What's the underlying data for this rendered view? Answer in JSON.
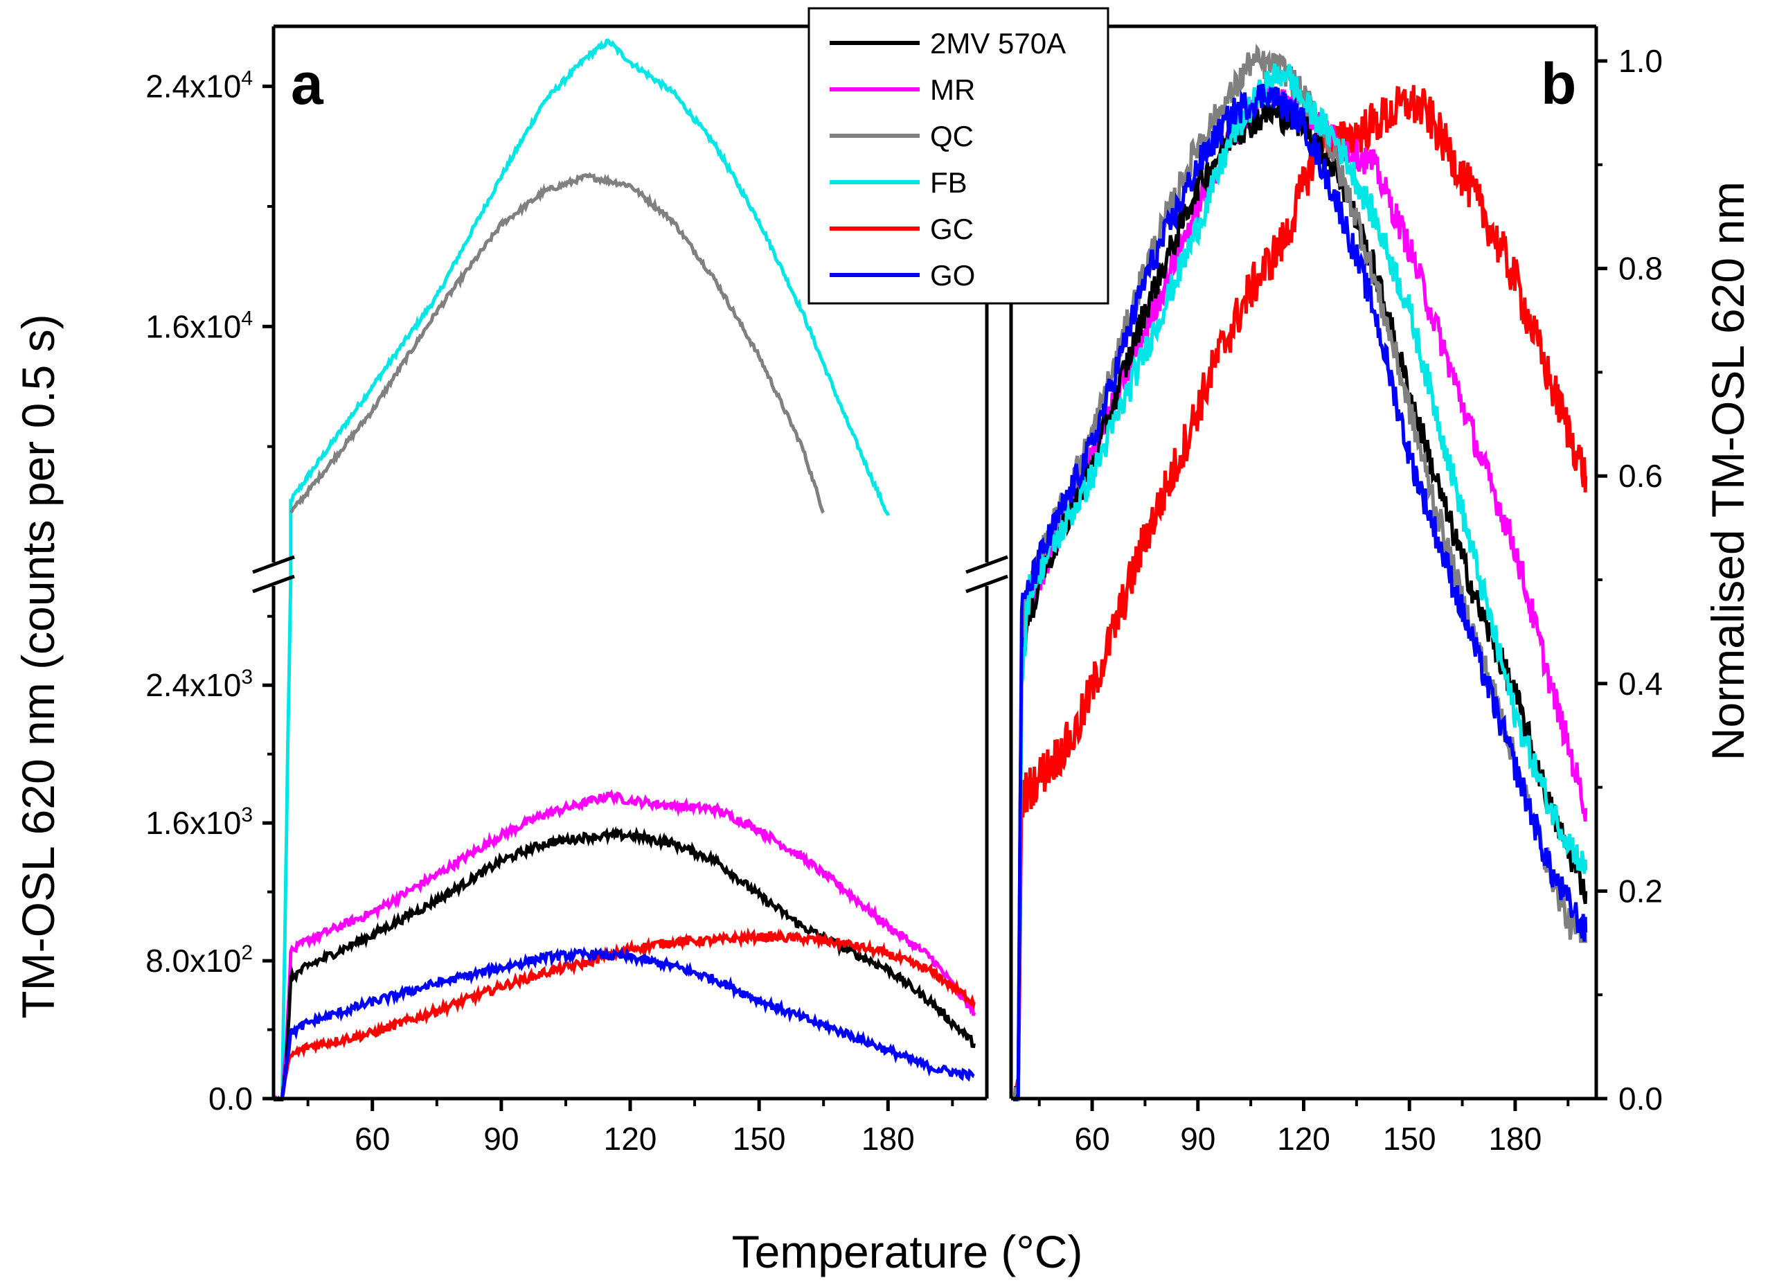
{
  "chart_data": {
    "type": "line",
    "xlabel": "Temperature (°C)",
    "x_ticks": [
      60,
      90,
      120,
      150,
      180
    ],
    "x_range": [
      37,
      203
    ],
    "legend": {
      "placement": "top-center",
      "items": [
        {
          "name": "2MV 570A",
          "color": "#000000"
        },
        {
          "name": "MR",
          "color": "#ff00ff"
        },
        {
          "name": "QC",
          "color": "#808080"
        },
        {
          "name": "FB",
          "color": "#00e5e5"
        },
        {
          "name": "GC",
          "color": "#ff0000"
        },
        {
          "name": "GO",
          "color": "#0000ff"
        }
      ]
    },
    "panels": [
      {
        "label": "a",
        "ylabel": "TM-OSL 620 nm (counts per 0.5 s)",
        "axis_break": true,
        "lower_ylim": [
          0,
          3000
        ],
        "lower_ticks": [
          "0.0",
          "8.0x10^2",
          "1.6x10^3",
          "2.4x10^3"
        ],
        "lower_tick_values": [
          0,
          800,
          1600,
          2400
        ],
        "upper_ylim": [
          8000,
          26000
        ],
        "upper_ticks": [
          "1.6x10^4",
          "2.4x10^4"
        ],
        "upper_tick_values": [
          16000,
          24000
        ],
        "series": [
          {
            "name": "FB",
            "color": "#00e5e5",
            "segment": "upper",
            "points": [
              [
                39,
                0
              ],
              [
                40,
                1500
              ],
              [
                41,
                3000
              ],
              [
                41,
                10200
              ],
              [
                45,
                11000
              ],
              [
                60,
                14000
              ],
              [
                75,
                17000
              ],
              [
                90,
                21000
              ],
              [
                100,
                23500
              ],
              [
                110,
                25000
              ],
              [
                115,
                25500
              ],
              [
                120,
                24800
              ],
              [
                130,
                23800
              ],
              [
                140,
                22000
              ],
              [
                150,
                19500
              ],
              [
                160,
                16500
              ],
              [
                170,
                13000
              ],
              [
                180,
                9700
              ]
            ]
          },
          {
            "name": "QC",
            "color": "#808080",
            "segment": "upper",
            "points": [
              [
                41,
                9800
              ],
              [
                45,
                10500
              ],
              [
                60,
                13200
              ],
              [
                75,
                16500
              ],
              [
                90,
                19400
              ],
              [
                100,
                20500
              ],
              [
                110,
                21000
              ],
              [
                120,
                20700
              ],
              [
                130,
                19500
              ],
              [
                140,
                17500
              ],
              [
                150,
                15000
              ],
              [
                160,
                12000
              ],
              [
                165,
                9800
              ]
            ]
          },
          {
            "name": "MR",
            "color": "#ff00ff",
            "segment": "lower",
            "points": [
              [
                35,
                0
              ],
              [
                39,
                0
              ],
              [
                40,
                300
              ],
              [
                41,
                850
              ],
              [
                45,
                920
              ],
              [
                60,
                1080
              ],
              [
                75,
                1300
              ],
              [
                90,
                1530
              ],
              [
                100,
                1650
              ],
              [
                110,
                1720
              ],
              [
                115,
                1760
              ],
              [
                120,
                1730
              ],
              [
                130,
                1700
              ],
              [
                140,
                1680
              ],
              [
                150,
                1560
              ],
              [
                160,
                1400
              ],
              [
                170,
                1210
              ],
              [
                180,
                1000
              ],
              [
                190,
                820
              ],
              [
                200,
                500
              ]
            ]
          },
          {
            "name": "2MV 570A",
            "color": "#000000",
            "segment": "lower",
            "points": [
              [
                35,
                0
              ],
              [
                39,
                0
              ],
              [
                40,
                200
              ],
              [
                41,
                700
              ],
              [
                45,
                770
              ],
              [
                60,
                950
              ],
              [
                75,
                1150
              ],
              [
                90,
                1380
              ],
              [
                100,
                1480
              ],
              [
                110,
                1520
              ],
              [
                120,
                1530
              ],
              [
                130,
                1480
              ],
              [
                140,
                1380
              ],
              [
                150,
                1180
              ],
              [
                160,
                1000
              ],
              [
                170,
                870
              ],
              [
                180,
                750
              ],
              [
                190,
                560
              ],
              [
                200,
                320
              ]
            ]
          },
          {
            "name": "GC",
            "color": "#ff0000",
            "segment": "lower",
            "points": [
              [
                39,
                0
              ],
              [
                40,
                150
              ],
              [
                41,
                250
              ],
              [
                45,
                300
              ],
              [
                60,
                380
              ],
              [
                75,
                510
              ],
              [
                90,
                650
              ],
              [
                100,
                730
              ],
              [
                110,
                790
              ],
              [
                120,
                870
              ],
              [
                130,
                910
              ],
              [
                140,
                920
              ],
              [
                150,
                940
              ],
              [
                160,
                930
              ],
              [
                170,
                900
              ],
              [
                180,
                840
              ],
              [
                190,
                740
              ],
              [
                200,
                560
              ]
            ]
          },
          {
            "name": "GO",
            "color": "#0000ff",
            "segment": "lower",
            "points": [
              [
                39,
                0
              ],
              [
                40,
                200
              ],
              [
                41,
                380
              ],
              [
                45,
                440
              ],
              [
                60,
                560
              ],
              [
                75,
                670
              ],
              [
                90,
                760
              ],
              [
                100,
                820
              ],
              [
                110,
                840
              ],
              [
                120,
                820
              ],
              [
                130,
                770
              ],
              [
                140,
                690
              ],
              [
                150,
                570
              ],
              [
                160,
                470
              ],
              [
                170,
                380
              ],
              [
                180,
                280
              ],
              [
                190,
                180
              ],
              [
                200,
                130
              ]
            ]
          }
        ]
      },
      {
        "label": "b",
        "ylabel": "Normalised TM-OSL 620 nm",
        "ylim": [
          0,
          1.0
        ],
        "y_ticks": [
          "0.0",
          "0.2",
          "0.4",
          "0.6",
          "0.8",
          "1.0"
        ],
        "y_tick_values": [
          0,
          0.2,
          0.4,
          0.6,
          0.8,
          1.0
        ],
        "series": [
          {
            "name": "GC",
            "color": "#ff0000",
            "points": [
              [
                38,
                0
              ],
              [
                39,
                0
              ],
              [
                40,
                0.29
              ],
              [
                45,
                0.31
              ],
              [
                55,
                0.35
              ],
              [
                65,
                0.44
              ],
              [
                75,
                0.54
              ],
              [
                85,
                0.62
              ],
              [
                95,
                0.71
              ],
              [
                105,
                0.78
              ],
              [
                115,
                0.83
              ],
              [
                120,
                0.88
              ],
              [
                125,
                0.93
              ],
              [
                130,
                0.92
              ],
              [
                140,
                0.94
              ],
              [
                150,
                0.96
              ],
              [
                155,
                0.95
              ],
              [
                160,
                0.92
              ],
              [
                170,
                0.86
              ],
              [
                180,
                0.79
              ],
              [
                190,
                0.69
              ],
              [
                200,
                0.6
              ]
            ]
          },
          {
            "name": "MR",
            "color": "#ff00ff",
            "points": [
              [
                38,
                0
              ],
              [
                39,
                0
              ],
              [
                40,
                0.44
              ],
              [
                45,
                0.5
              ],
              [
                60,
                0.62
              ],
              [
                75,
                0.74
              ],
              [
                90,
                0.86
              ],
              [
                100,
                0.93
              ],
              [
                110,
                0.97
              ],
              [
                120,
                0.95
              ],
              [
                130,
                0.92
              ],
              [
                140,
                0.9
              ],
              [
                150,
                0.82
              ],
              [
                160,
                0.72
              ],
              [
                170,
                0.62
              ],
              [
                180,
                0.53
              ],
              [
                190,
                0.4
              ],
              [
                200,
                0.28
              ]
            ]
          },
          {
            "name": "2MV 570A",
            "color": "#000000",
            "points": [
              [
                38,
                0
              ],
              [
                39,
                0
              ],
              [
                40,
                0.43
              ],
              [
                45,
                0.5
              ],
              [
                60,
                0.61
              ],
              [
                75,
                0.76
              ],
              [
                90,
                0.88
              ],
              [
                100,
                0.93
              ],
              [
                110,
                0.95
              ],
              [
                120,
                0.94
              ],
              [
                130,
                0.89
              ],
              [
                140,
                0.8
              ],
              [
                150,
                0.68
              ],
              [
                160,
                0.57
              ],
              [
                170,
                0.47
              ],
              [
                180,
                0.39
              ],
              [
                190,
                0.28
              ],
              [
                200,
                0.2
              ]
            ]
          },
          {
            "name": "QC",
            "color": "#808080",
            "points": [
              [
                38,
                0
              ],
              [
                39,
                0
              ],
              [
                40,
                0.46
              ],
              [
                45,
                0.52
              ],
              [
                60,
                0.64
              ],
              [
                75,
                0.8
              ],
              [
                90,
                0.92
              ],
              [
                100,
                0.97
              ],
              [
                105,
                1.0
              ],
              [
                115,
                0.99
              ],
              [
                125,
                0.94
              ],
              [
                135,
                0.85
              ],
              [
                145,
                0.73
              ],
              [
                155,
                0.6
              ],
              [
                165,
                0.48
              ],
              [
                175,
                0.38
              ],
              [
                185,
                0.27
              ],
              [
                195,
                0.17
              ],
              [
                200,
                0.15
              ]
            ]
          },
          {
            "name": "FB",
            "color": "#00e5e5",
            "points": [
              [
                38,
                0
              ],
              [
                39,
                0
              ],
              [
                40,
                0.4
              ],
              [
                42,
                0.49
              ],
              [
                60,
                0.6
              ],
              [
                75,
                0.72
              ],
              [
                90,
                0.84
              ],
              [
                100,
                0.93
              ],
              [
                110,
                0.98
              ],
              [
                115,
                0.99
              ],
              [
                120,
                0.96
              ],
              [
                130,
                0.92
              ],
              [
                140,
                0.85
              ],
              [
                150,
                0.76
              ],
              [
                160,
                0.63
              ],
              [
                170,
                0.5
              ],
              [
                180,
                0.37
              ],
              [
                190,
                0.28
              ],
              [
                200,
                0.22
              ]
            ]
          },
          {
            "name": "GO",
            "color": "#0000ff",
            "points": [
              [
                38,
                0
              ],
              [
                39,
                0
              ],
              [
                40,
                0.47
              ],
              [
                45,
                0.52
              ],
              [
                60,
                0.63
              ],
              [
                75,
                0.79
              ],
              [
                90,
                0.9
              ],
              [
                100,
                0.95
              ],
              [
                110,
                0.97
              ],
              [
                120,
                0.94
              ],
              [
                130,
                0.86
              ],
              [
                140,
                0.76
              ],
              [
                150,
                0.62
              ],
              [
                160,
                0.52
              ],
              [
                170,
                0.42
              ],
              [
                180,
                0.32
              ],
              [
                190,
                0.22
              ],
              [
                200,
                0.16
              ]
            ]
          }
        ]
      }
    ]
  }
}
